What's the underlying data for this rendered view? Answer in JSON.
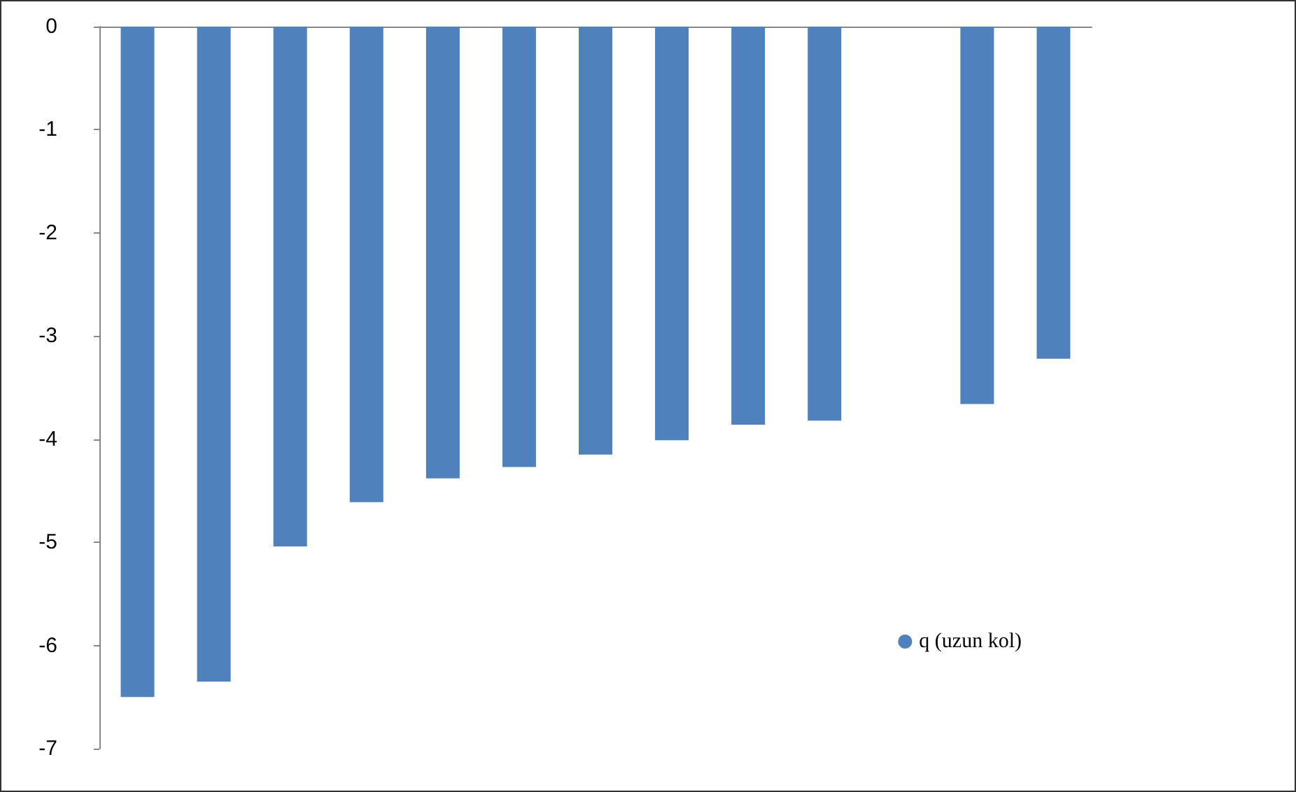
{
  "chart_data": {
    "type": "bar",
    "categories": [
      null,
      null,
      null,
      null,
      null,
      null,
      null,
      null,
      null,
      null,
      null,
      null,
      null
    ],
    "series": [
      {
        "name": "q (uzun kol)",
        "color": "#4f81bd",
        "values": [
          -6.5,
          -6.35,
          -5.04,
          -4.61,
          -4.38,
          -4.27,
          -4.15,
          -4.01,
          -3.86,
          -3.82,
          null,
          -3.66,
          -3.22
        ]
      }
    ],
    "ylim": [
      -7,
      0
    ],
    "yticks": [
      -7,
      -6,
      -5,
      -4,
      -3,
      -2,
      -1,
      0
    ],
    "grid": false,
    "legend": "right"
  }
}
